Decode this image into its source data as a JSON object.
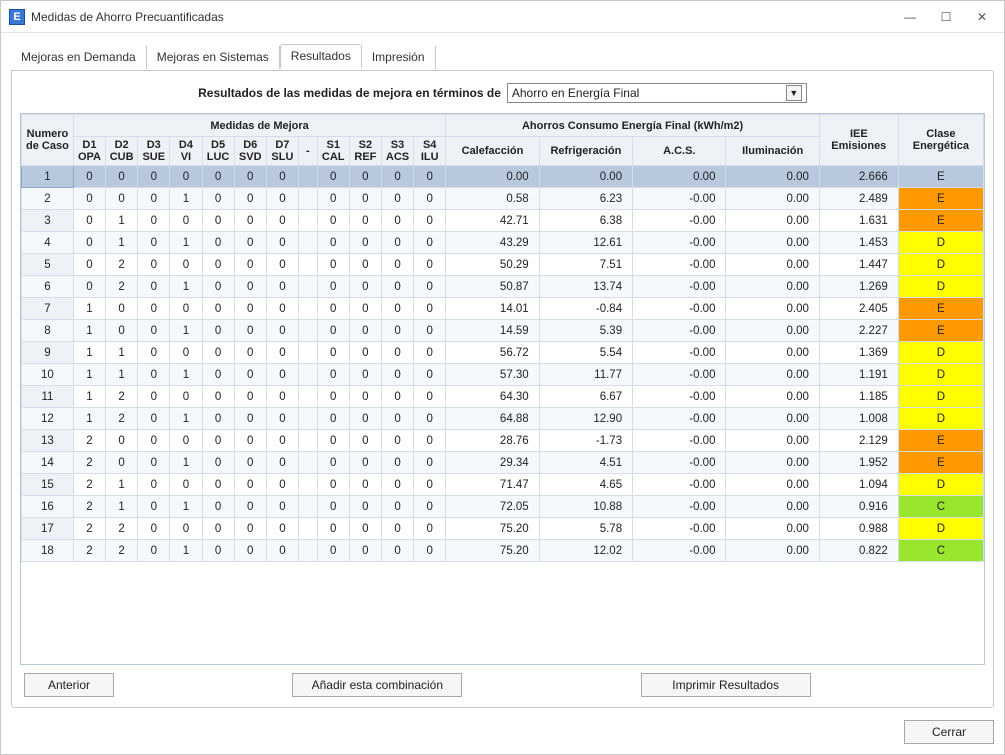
{
  "window": {
    "title": "Medidas de Ahorro Precuantificadas",
    "icon_letter": "E",
    "min_label": "—",
    "max_label": "☐",
    "close_label": "✕"
  },
  "tabs": {
    "items": [
      {
        "label": "Mejoras en Demanda"
      },
      {
        "label": "Mejoras en Sistemas"
      },
      {
        "label": "Resultados"
      },
      {
        "label": "Impresión"
      }
    ],
    "active_index": 2
  },
  "header": {
    "label": "Resultados de las medidas de mejora en términos de",
    "combo_value": "Ahorro en Energía Final"
  },
  "table": {
    "group_headers": {
      "caso": "Numero de Caso",
      "medidas": "Medidas de Mejora",
      "ahorros": "Ahorros Consumo Energía Final (kWh/m2)",
      "iee": "IEE Emisiones",
      "clase": "Clase Energética"
    },
    "sub_headers": {
      "d": [
        "D1 OPA",
        "D2 CUB",
        "D3 SUE",
        "D4 VI",
        "D5 LUC",
        "D6 SVD",
        "D7 SLU"
      ],
      "dash": "-",
      "s": [
        "S1 CAL",
        "S2 REF",
        "S3 ACS",
        "S4 ILU"
      ],
      "cons": [
        "Calefacción",
        "Refrigeración",
        "A.C.S.",
        "Iluminación"
      ]
    },
    "class_colors": {
      "C": "#99e62e",
      "D": "#ffff00",
      "E": "#ff9900"
    },
    "rows": [
      {
        "n": 1,
        "d": [
          0,
          0,
          0,
          0,
          0,
          0,
          0
        ],
        "s": [
          0,
          0,
          0,
          0
        ],
        "cons": [
          "0.00",
          "0.00",
          "0.00",
          "0.00"
        ],
        "iee": "2.666",
        "cls": "E",
        "sel": true
      },
      {
        "n": 2,
        "d": [
          0,
          0,
          0,
          1,
          0,
          0,
          0
        ],
        "s": [
          0,
          0,
          0,
          0
        ],
        "cons": [
          "0.58",
          "6.23",
          "-0.00",
          "0.00"
        ],
        "iee": "2.489",
        "cls": "E"
      },
      {
        "n": 3,
        "d": [
          0,
          1,
          0,
          0,
          0,
          0,
          0
        ],
        "s": [
          0,
          0,
          0,
          0
        ],
        "cons": [
          "42.71",
          "6.38",
          "-0.00",
          "0.00"
        ],
        "iee": "1.631",
        "cls": "E"
      },
      {
        "n": 4,
        "d": [
          0,
          1,
          0,
          1,
          0,
          0,
          0
        ],
        "s": [
          0,
          0,
          0,
          0
        ],
        "cons": [
          "43.29",
          "12.61",
          "-0.00",
          "0.00"
        ],
        "iee": "1.453",
        "cls": "D"
      },
      {
        "n": 5,
        "d": [
          0,
          2,
          0,
          0,
          0,
          0,
          0
        ],
        "s": [
          0,
          0,
          0,
          0
        ],
        "cons": [
          "50.29",
          "7.51",
          "-0.00",
          "0.00"
        ],
        "iee": "1.447",
        "cls": "D"
      },
      {
        "n": 6,
        "d": [
          0,
          2,
          0,
          1,
          0,
          0,
          0
        ],
        "s": [
          0,
          0,
          0,
          0
        ],
        "cons": [
          "50.87",
          "13.74",
          "-0.00",
          "0.00"
        ],
        "iee": "1.269",
        "cls": "D"
      },
      {
        "n": 7,
        "d": [
          1,
          0,
          0,
          0,
          0,
          0,
          0
        ],
        "s": [
          0,
          0,
          0,
          0
        ],
        "cons": [
          "14.01",
          "-0.84",
          "-0.00",
          "0.00"
        ],
        "iee": "2.405",
        "cls": "E"
      },
      {
        "n": 8,
        "d": [
          1,
          0,
          0,
          1,
          0,
          0,
          0
        ],
        "s": [
          0,
          0,
          0,
          0
        ],
        "cons": [
          "14.59",
          "5.39",
          "-0.00",
          "0.00"
        ],
        "iee": "2.227",
        "cls": "E"
      },
      {
        "n": 9,
        "d": [
          1,
          1,
          0,
          0,
          0,
          0,
          0
        ],
        "s": [
          0,
          0,
          0,
          0
        ],
        "cons": [
          "56.72",
          "5.54",
          "-0.00",
          "0.00"
        ],
        "iee": "1.369",
        "cls": "D"
      },
      {
        "n": 10,
        "d": [
          1,
          1,
          0,
          1,
          0,
          0,
          0
        ],
        "s": [
          0,
          0,
          0,
          0
        ],
        "cons": [
          "57.30",
          "11.77",
          "-0.00",
          "0.00"
        ],
        "iee": "1.191",
        "cls": "D"
      },
      {
        "n": 11,
        "d": [
          1,
          2,
          0,
          0,
          0,
          0,
          0
        ],
        "s": [
          0,
          0,
          0,
          0
        ],
        "cons": [
          "64.30",
          "6.67",
          "-0.00",
          "0.00"
        ],
        "iee": "1.185",
        "cls": "D"
      },
      {
        "n": 12,
        "d": [
          1,
          2,
          0,
          1,
          0,
          0,
          0
        ],
        "s": [
          0,
          0,
          0,
          0
        ],
        "cons": [
          "64.88",
          "12.90",
          "-0.00",
          "0.00"
        ],
        "iee": "1.008",
        "cls": "D"
      },
      {
        "n": 13,
        "d": [
          2,
          0,
          0,
          0,
          0,
          0,
          0
        ],
        "s": [
          0,
          0,
          0,
          0
        ],
        "cons": [
          "28.76",
          "-1.73",
          "-0.00",
          "0.00"
        ],
        "iee": "2.129",
        "cls": "E"
      },
      {
        "n": 14,
        "d": [
          2,
          0,
          0,
          1,
          0,
          0,
          0
        ],
        "s": [
          0,
          0,
          0,
          0
        ],
        "cons": [
          "29.34",
          "4.51",
          "-0.00",
          "0.00"
        ],
        "iee": "1.952",
        "cls": "E"
      },
      {
        "n": 15,
        "d": [
          2,
          1,
          0,
          0,
          0,
          0,
          0
        ],
        "s": [
          0,
          0,
          0,
          0
        ],
        "cons": [
          "71.47",
          "4.65",
          "-0.00",
          "0.00"
        ],
        "iee": "1.094",
        "cls": "D"
      },
      {
        "n": 16,
        "d": [
          2,
          1,
          0,
          1,
          0,
          0,
          0
        ],
        "s": [
          0,
          0,
          0,
          0
        ],
        "cons": [
          "72.05",
          "10.88",
          "-0.00",
          "0.00"
        ],
        "iee": "0.916",
        "cls": "C"
      },
      {
        "n": 17,
        "d": [
          2,
          2,
          0,
          0,
          0,
          0,
          0
        ],
        "s": [
          0,
          0,
          0,
          0
        ],
        "cons": [
          "75.20",
          "5.78",
          "-0.00",
          "0.00"
        ],
        "iee": "0.988",
        "cls": "D"
      },
      {
        "n": 18,
        "d": [
          2,
          2,
          0,
          1,
          0,
          0,
          0
        ],
        "s": [
          0,
          0,
          0,
          0
        ],
        "cons": [
          "75.20",
          "12.02",
          "-0.00",
          "0.00"
        ],
        "iee": "0.822",
        "cls": "C"
      }
    ]
  },
  "buttons": {
    "prev": "Anterior",
    "add": "Añadir esta combinación",
    "print": "Imprimir Resultados",
    "close": "Cerrar"
  }
}
